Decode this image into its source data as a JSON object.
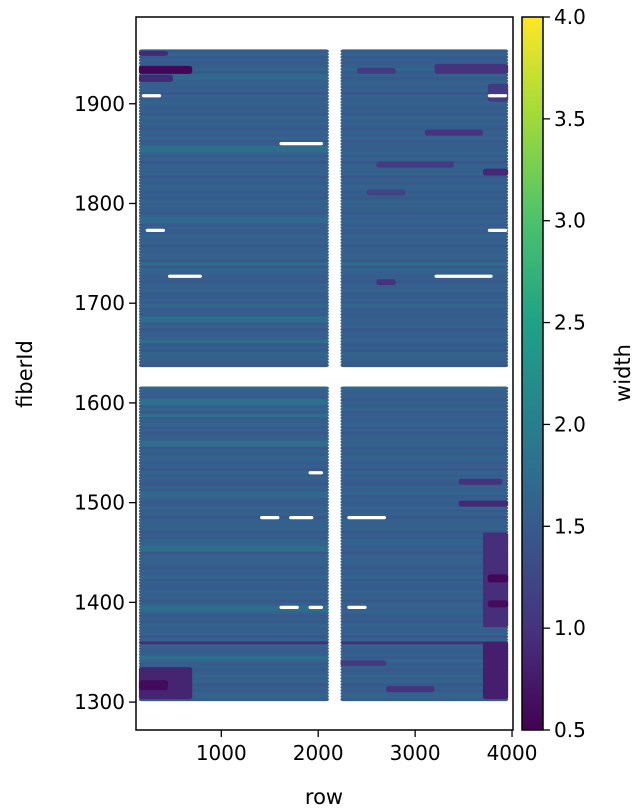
{
  "chart_data": {
    "type": "heatmap",
    "xlabel": "row",
    "ylabel": "fiberId",
    "xlim": [
      120,
      4010
    ],
    "ylim": [
      1272,
      1987
    ],
    "x_ticks": [
      1000,
      2000,
      3000,
      4000
    ],
    "y_ticks": [
      1300,
      1400,
      1500,
      1600,
      1700,
      1800,
      1900
    ],
    "colorbar": {
      "label": "width",
      "colormap": "viridis",
      "range": [
        0.5,
        4.0
      ],
      "ticks": [
        0.5,
        1.0,
        1.5,
        2.0,
        2.5,
        3.0,
        3.5,
        4.0
      ]
    },
    "fiber_blocks": [
      {
        "fiber_range": [
          1303,
          1617
        ]
      },
      {
        "fiber_range": [
          1638,
          1953
        ]
      }
    ],
    "row_extent": [
      150,
      3960
    ],
    "row_gap": [
      2110,
      2230
    ],
    "base_width": 1.55,
    "band_widths": [
      {
        "fiber": 1360,
        "row_range": [
          150,
          3960
        ],
        "width": 0.95
      },
      {
        "fiber": 1345,
        "row_range": [
          150,
          2110
        ],
        "width": 1.8
      },
      {
        "fiber": 1395,
        "row_range": [
          150,
          2110
        ],
        "width": 1.75
      },
      {
        "fiber": 1455,
        "row_range": [
          150,
          2110
        ],
        "width": 1.75
      },
      {
        "fiber": 1508,
        "row_range": [
          150,
          2110
        ],
        "width": 1.7
      },
      {
        "fiber": 1560,
        "row_range": [
          150,
          2110
        ],
        "width": 1.75
      },
      {
        "fiber": 1588,
        "row_range": [
          150,
          2110
        ],
        "width": 1.8
      },
      {
        "fiber": 1601,
        "row_range": [
          150,
          2110
        ],
        "width": 1.8
      },
      {
        "fiber": 1662,
        "row_range": [
          150,
          2110
        ],
        "width": 1.8
      },
      {
        "fiber": 1685,
        "row_range": [
          150,
          2110
        ],
        "width": 1.75
      },
      {
        "fiber": 1740,
        "row_range": [
          150,
          2900
        ],
        "width": 1.75
      },
      {
        "fiber": 1784,
        "row_range": [
          150,
          2110
        ],
        "width": 1.7
      },
      {
        "fiber": 1855,
        "row_range": [
          150,
          2110
        ],
        "width": 1.75
      },
      {
        "fiber": 1927,
        "row_range": [
          150,
          2110
        ],
        "width": 1.7
      }
    ],
    "low_width_patches": [
      {
        "row_range": [
          150,
          700
        ],
        "fiber_range": [
          1930,
          1938
        ],
        "width": 0.55
      },
      {
        "row_range": [
          150,
          500
        ],
        "fiber_range": [
          1922,
          1929
        ],
        "width": 0.9
      },
      {
        "row_range": [
          150,
          450
        ],
        "fiber_range": [
          1948,
          1953
        ],
        "width": 0.9
      },
      {
        "row_range": [
          3200,
          3960
        ],
        "fiber_range": [
          1930,
          1940
        ],
        "width": 1.0
      },
      {
        "row_range": [
          2400,
          2800
        ],
        "fiber_range": [
          1930,
          1936
        ],
        "width": 1.1
      },
      {
        "row_range": [
          3750,
          3960
        ],
        "fiber_range": [
          1902,
          1920
        ],
        "width": 1.1
      },
      {
        "row_range": [
          3100,
          3700
        ],
        "fiber_range": [
          1868,
          1874
        ],
        "width": 1.0
      },
      {
        "row_range": [
          2600,
          3400
        ],
        "fiber_range": [
          1836,
          1842
        ],
        "width": 1.1
      },
      {
        "row_range": [
          3700,
          3960
        ],
        "fiber_range": [
          1828,
          1835
        ],
        "width": 0.9
      },
      {
        "row_range": [
          2500,
          2900
        ],
        "fiber_range": [
          1808,
          1814
        ],
        "width": 1.2
      },
      {
        "row_range": [
          2600,
          2800
        ],
        "fiber_range": [
          1718,
          1724
        ],
        "width": 1.0
      },
      {
        "row_range": [
          150,
          700
        ],
        "fiber_range": [
          1303,
          1335
        ],
        "width": 0.85
      },
      {
        "row_range": [
          150,
          450
        ],
        "fiber_range": [
          1312,
          1322
        ],
        "width": 0.6
      },
      {
        "row_range": [
          3700,
          3960
        ],
        "fiber_range": [
          1303,
          1360
        ],
        "width": 0.8
      },
      {
        "row_range": [
          3700,
          3960
        ],
        "fiber_range": [
          1375,
          1470
        ],
        "width": 0.95
      },
      {
        "row_range": [
          3750,
          3960
        ],
        "fiber_range": [
          1420,
          1428
        ],
        "width": 0.55
      },
      {
        "row_range": [
          3750,
          3960
        ],
        "fiber_range": [
          1395,
          1402
        ],
        "width": 0.6
      },
      {
        "row_range": [
          3450,
          3960
        ],
        "fiber_range": [
          1496,
          1502
        ],
        "width": 0.9
      },
      {
        "row_range": [
          3450,
          3900
        ],
        "fiber_range": [
          1518,
          1524
        ],
        "width": 1.0
      },
      {
        "row_range": [
          2230,
          2700
        ],
        "fiber_range": [
          1336,
          1342
        ],
        "width": 1.1
      },
      {
        "row_range": [
          2700,
          3200
        ],
        "fiber_range": [
          1310,
          1316
        ],
        "width": 1.0
      }
    ],
    "missing_points": [
      {
        "fiber": 1395,
        "row_range": [
          1600,
          1800
        ]
      },
      {
        "fiber": 1395,
        "row_range": [
          1900,
          2050
        ]
      },
      {
        "fiber": 1395,
        "row_range": [
          2300,
          2500
        ]
      },
      {
        "fiber": 1485,
        "row_range": [
          1400,
          1600
        ]
      },
      {
        "fiber": 1485,
        "row_range": [
          1700,
          1950
        ]
      },
      {
        "fiber": 1485,
        "row_range": [
          2300,
          2700
        ]
      },
      {
        "fiber": 1530,
        "row_range": [
          1900,
          2050
        ]
      },
      {
        "fiber": 1727,
        "row_range": [
          450,
          800
        ]
      },
      {
        "fiber": 1727,
        "row_range": [
          3200,
          3800
        ]
      },
      {
        "fiber": 1773,
        "row_range": [
          220,
          420
        ]
      },
      {
        "fiber": 1773,
        "row_range": [
          3750,
          3950
        ]
      },
      {
        "fiber": 1860,
        "row_range": [
          1600,
          2050
        ]
      },
      {
        "fiber": 1908,
        "row_range": [
          180,
          380
        ]
      },
      {
        "fiber": 1908,
        "row_range": [
          3750,
          3950
        ]
      }
    ]
  }
}
